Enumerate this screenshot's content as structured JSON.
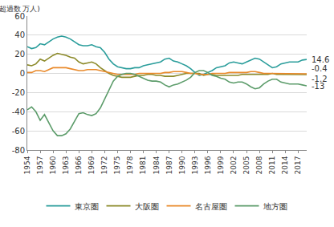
{
  "chart_data": {
    "type": "line",
    "y_label": "(転入超過数 万人)",
    "x": [
      1954,
      1955,
      1956,
      1957,
      1958,
      1959,
      1960,
      1961,
      1962,
      1963,
      1964,
      1965,
      1966,
      1967,
      1968,
      1969,
      1970,
      1971,
      1972,
      1973,
      1974,
      1975,
      1976,
      1977,
      1978,
      1979,
      1980,
      1981,
      1982,
      1983,
      1984,
      1985,
      1986,
      1987,
      1988,
      1989,
      1990,
      1991,
      1992,
      1993,
      1994,
      1995,
      1996,
      1997,
      1998,
      1999,
      2000,
      2001,
      2002,
      2003,
      2004,
      2005,
      2006,
      2007,
      2008,
      2009,
      2010,
      2011,
      2012,
      2013,
      2014,
      2015,
      2016,
      2017,
      2018,
      2019
    ],
    "series": [
      {
        "name": "東京圏",
        "color": "#2a9d9b",
        "values": [
          28,
          26,
          27,
          31,
          30,
          33,
          36,
          38,
          39,
          38,
          36,
          33,
          30,
          29,
          29,
          30,
          28,
          27,
          22,
          15,
          10,
          7,
          6,
          5,
          5,
          6,
          6,
          8,
          9,
          10,
          11,
          12,
          15,
          16,
          13,
          12,
          10,
          8,
          5,
          1,
          -2,
          -1,
          1,
          3,
          6,
          7,
          8,
          11,
          12,
          11,
          10,
          12,
          14,
          16,
          15,
          12,
          9,
          6,
          7,
          10,
          11,
          12,
          12,
          12,
          14,
          14.6
        ]
      },
      {
        "name": "大阪圏",
        "color": "#8c8a2a",
        "values": [
          9,
          8,
          10,
          15,
          13,
          16,
          19,
          21,
          20,
          19,
          17,
          16,
          12,
          10,
          11,
          12,
          10,
          6,
          3,
          0,
          -2,
          -3,
          -4,
          -4,
          -4,
          -3,
          -2,
          -2,
          -1,
          -1,
          -2,
          -2,
          -3,
          -3,
          -3,
          -2,
          -1,
          0,
          0,
          0,
          0,
          -2,
          -1,
          -1,
          -2,
          -2,
          -2,
          -2,
          -2,
          -2,
          -1,
          -1,
          -1,
          -1,
          -1,
          -1,
          -1,
          0,
          -1,
          -1,
          -1,
          -1,
          -1,
          -1,
          -1,
          -1.2
        ]
      },
      {
        "name": "名古屋圏",
        "color": "#e9892a",
        "values": [
          1,
          1,
          3,
          3,
          2,
          4,
          6,
          6,
          6,
          6,
          5,
          4,
          3,
          3,
          4,
          4,
          4,
          3,
          2,
          1,
          0,
          -1,
          -1,
          -1,
          -1,
          -1,
          0,
          0,
          0,
          0,
          0,
          0,
          1,
          1,
          2,
          2,
          2,
          1,
          0,
          0,
          -1,
          -1,
          -1,
          0,
          0,
          0,
          0,
          1,
          1,
          1,
          1,
          1,
          2,
          2,
          1,
          0,
          0,
          0,
          0,
          0,
          0,
          0,
          0,
          0,
          0,
          -0.4
        ]
      },
      {
        "name": "地方圏",
        "color": "#5c9c6a",
        "values": [
          -38,
          -35,
          -40,
          -49,
          -43,
          -52,
          -60,
          -65,
          -65,
          -63,
          -58,
          -50,
          -42,
          -41,
          -43,
          -44,
          -42,
          -36,
          -27,
          -17,
          -8,
          -3,
          -1,
          0,
          0,
          -1,
          -3,
          -5,
          -7,
          -8,
          -8,
          -9,
          -12,
          -14,
          -12,
          -11,
          -9,
          -7,
          -4,
          1,
          3,
          3,
          1,
          -2,
          -3,
          -5,
          -6,
          -9,
          -10,
          -9,
          -9,
          -11,
          -14,
          -16,
          -15,
          -11,
          -8,
          -6,
          -6,
          -9,
          -10,
          -11,
          -11,
          -11,
          -12,
          -13
        ]
      }
    ],
    "annotations": [
      {
        "text": "14.6",
        "x": 2019,
        "y": 14.6
      },
      {
        "text": "-0.4",
        "x": 2019,
        "y": -0.4
      },
      {
        "text": "-1.2",
        "x": 2019,
        "y": -1.2
      },
      {
        "text": "-13",
        "x": 2019,
        "y": -13
      }
    ],
    "xlim": [
      1954,
      2019
    ],
    "xticks": [
      1954,
      1957,
      1960,
      1963,
      1966,
      1969,
      1972,
      1975,
      1978,
      1981,
      1984,
      1987,
      1990,
      1993,
      1996,
      1999,
      2002,
      2005,
      2008,
      2011,
      2014,
      2017
    ],
    "ylim": [
      -80,
      60
    ],
    "yticks": [
      -80,
      -60,
      -40,
      -20,
      0,
      20,
      40,
      60
    ],
    "grid": true,
    "legend": "bottom"
  }
}
